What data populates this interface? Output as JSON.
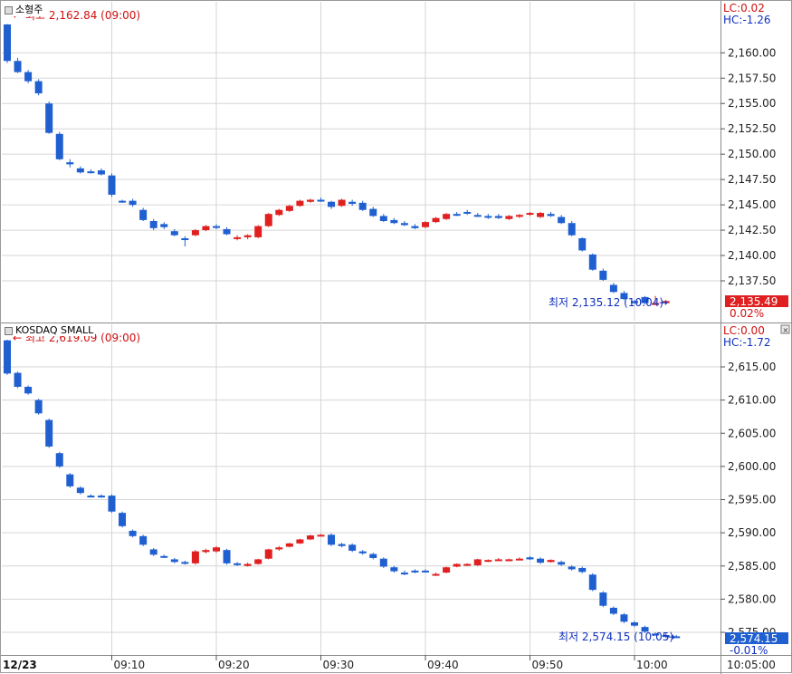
{
  "panels": [
    {
      "name": "소형주",
      "lc": "LC:0.02",
      "hc": "HC:-1.26",
      "high_note": "최고 2,162.84 (09:00)",
      "low_note": "최저 2,135.12 (10:04)",
      "last_value": "2,135.49",
      "change_pct": "0.02%",
      "y_ticks": [
        "2,160.00",
        "2,157.50",
        "2,155.00",
        "2,152.50",
        "2,150.00",
        "2,147.50",
        "2,145.00",
        "2,142.50",
        "2,140.00",
        "2,137.50"
      ],
      "colors": {
        "up": "#e02020",
        "down": "#1f5fd0",
        "badge": "#e02020"
      }
    },
    {
      "name": "KOSDAQ SMALL",
      "lc": "LC:0.00",
      "hc": "HC:-1.72",
      "high_note": "최고 2,619.09 (09:00)",
      "low_note": "최저 2,574.15 (10:05)",
      "last_value": "2,574.15",
      "change_pct": "-0.01%",
      "y_ticks": [
        "2,615.00",
        "2,610.00",
        "2,605.00",
        "2,600.00",
        "2,595.00",
        "2,590.00",
        "2,585.00",
        "2,580.00",
        "2,575.00"
      ],
      "colors": {
        "up": "#e02020",
        "down": "#1f5fd0",
        "badge": "#1f5fd0"
      }
    }
  ],
  "x_axis": {
    "date": "12/23",
    "ticks": [
      "09:10",
      "09:20",
      "09:30",
      "09:40",
      "09:50",
      "10:00"
    ],
    "right_label": "10:05:00"
  },
  "chart_data": [
    {
      "type": "candlestick",
      "title": "소형주",
      "ylim": [
        2132.5,
        2162.8
      ],
      "x_unit": "minute",
      "start_time": "09:00",
      "candles": [
        [
          2162.8,
          2162.84,
          2159.0,
          2159.2
        ],
        [
          2159.2,
          2159.5,
          2158.0,
          2158.1
        ],
        [
          2158.1,
          2158.3,
          2157.0,
          2157.2
        ],
        [
          2157.2,
          2157.4,
          2155.8,
          2156.0
        ],
        [
          2155.0,
          2155.2,
          2152.0,
          2152.1
        ],
        [
          2152.0,
          2152.2,
          2149.4,
          2149.5
        ],
        [
          2149.2,
          2149.5,
          2148.7,
          2149.0
        ],
        [
          2148.6,
          2148.8,
          2148.1,
          2148.2
        ],
        [
          2148.3,
          2148.5,
          2148.1,
          2148.2
        ],
        [
          2148.4,
          2148.6,
          2147.9,
          2148.0
        ],
        [
          2147.9,
          2148.1,
          2145.8,
          2146.0
        ],
        [
          2145.4,
          2145.5,
          2145.2,
          2145.3
        ],
        [
          2145.4,
          2145.6,
          2144.8,
          2145.0
        ],
        [
          2144.5,
          2144.7,
          2143.4,
          2143.5
        ],
        [
          2143.4,
          2143.6,
          2142.5,
          2142.7
        ],
        [
          2143.1,
          2143.3,
          2142.6,
          2142.8
        ],
        [
          2142.4,
          2142.6,
          2141.9,
          2142.0
        ],
        [
          2141.7,
          2141.9,
          2140.9,
          2141.6
        ],
        [
          2142.0,
          2142.6,
          2141.9,
          2142.5
        ],
        [
          2142.5,
          2143.0,
          2142.4,
          2142.9
        ],
        [
          2142.9,
          2143.1,
          2142.6,
          2142.8
        ],
        [
          2142.6,
          2142.8,
          2142.0,
          2142.1
        ],
        [
          2141.7,
          2142.0,
          2141.5,
          2141.8
        ],
        [
          2141.8,
          2142.1,
          2141.6,
          2142.0
        ],
        [
          2141.8,
          2143.0,
          2141.7,
          2142.9
        ],
        [
          2142.9,
          2144.2,
          2142.8,
          2144.1
        ],
        [
          2144.0,
          2144.6,
          2143.9,
          2144.5
        ],
        [
          2144.4,
          2145.0,
          2144.3,
          2144.9
        ],
        [
          2144.9,
          2145.5,
          2144.8,
          2145.4
        ],
        [
          2145.3,
          2145.6,
          2145.2,
          2145.5
        ],
        [
          2145.5,
          2145.7,
          2145.3,
          2145.4
        ],
        [
          2145.3,
          2145.4,
          2144.6,
          2144.8
        ],
        [
          2144.9,
          2145.6,
          2144.8,
          2145.5
        ],
        [
          2145.3,
          2145.5,
          2144.9,
          2145.1
        ],
        [
          2145.2,
          2145.4,
          2144.4,
          2144.5
        ],
        [
          2144.6,
          2144.8,
          2143.8,
          2143.9
        ],
        [
          2143.9,
          2144.1,
          2143.3,
          2143.4
        ],
        [
          2143.5,
          2143.7,
          2143.1,
          2143.2
        ],
        [
          2143.2,
          2143.4,
          2142.9,
          2143.0
        ],
        [
          2142.9,
          2143.1,
          2142.6,
          2142.7
        ],
        [
          2142.8,
          2143.4,
          2142.7,
          2143.3
        ],
        [
          2143.3,
          2143.8,
          2143.2,
          2143.7
        ],
        [
          2143.6,
          2144.2,
          2143.5,
          2144.1
        ],
        [
          2144.1,
          2144.3,
          2143.9,
          2144.0
        ],
        [
          2144.3,
          2144.5,
          2144.0,
          2144.2
        ],
        [
          2144.0,
          2144.2,
          2143.8,
          2143.9
        ],
        [
          2143.9,
          2144.1,
          2143.6,
          2143.8
        ],
        [
          2143.9,
          2144.1,
          2143.6,
          2143.7
        ],
        [
          2143.6,
          2144.0,
          2143.5,
          2143.9
        ],
        [
          2143.9,
          2144.1,
          2143.7,
          2144.0
        ],
        [
          2144.1,
          2144.3,
          2143.9,
          2144.2
        ],
        [
          2143.8,
          2144.3,
          2143.7,
          2144.2
        ],
        [
          2144.1,
          2144.3,
          2143.8,
          2143.9
        ],
        [
          2143.8,
          2144.0,
          2143.1,
          2143.2
        ],
        [
          2143.2,
          2143.4,
          2141.9,
          2142.0
        ],
        [
          2141.7,
          2141.8,
          2140.4,
          2140.5
        ],
        [
          2140.1,
          2140.2,
          2138.5,
          2138.6
        ],
        [
          2138.5,
          2138.7,
          2137.5,
          2137.6
        ],
        [
          2137.1,
          2137.3,
          2136.3,
          2136.4
        ],
        [
          2136.3,
          2136.5,
          2135.6,
          2135.7
        ],
        [
          2135.5,
          2135.6,
          2135.2,
          2135.3
        ],
        [
          2135.9,
          2136.0,
          2135.2,
          2135.3
        ],
        [
          2135.2,
          2136.0,
          2135.12,
          2135.3
        ],
        [
          2135.3,
          2135.6,
          2135.2,
          2135.5
        ]
      ]
    },
    {
      "type": "candlestick",
      "title": "KOSDAQ SMALL",
      "ylim": [
        2571.5,
        2619.1
      ],
      "x_unit": "minute",
      "start_time": "09:00",
      "candles": [
        [
          2619.0,
          2619.09,
          2613.8,
          2614.0
        ],
        [
          2614.1,
          2614.3,
          2611.8,
          2612.0
        ],
        [
          2612.0,
          2612.2,
          2610.8,
          2611.0
        ],
        [
          2610.0,
          2610.2,
          2607.8,
          2608.0
        ],
        [
          2607.0,
          2607.2,
          2602.8,
          2603.0
        ],
        [
          2602.0,
          2602.2,
          2599.8,
          2600.0
        ],
        [
          2598.8,
          2599.0,
          2596.8,
          2597.0
        ],
        [
          2596.8,
          2597.0,
          2595.8,
          2596.0
        ],
        [
          2595.6,
          2595.8,
          2595.4,
          2595.5
        ],
        [
          2595.6,
          2595.8,
          2595.3,
          2595.4
        ],
        [
          2595.6,
          2595.8,
          2593.0,
          2593.2
        ],
        [
          2593.0,
          2593.2,
          2590.8,
          2591.0
        ],
        [
          2590.3,
          2590.5,
          2589.3,
          2589.5
        ],
        [
          2589.5,
          2589.7,
          2588.0,
          2588.2
        ],
        [
          2587.5,
          2587.7,
          2586.5,
          2586.7
        ],
        [
          2586.5,
          2586.7,
          2586.2,
          2586.4
        ],
        [
          2586.0,
          2586.2,
          2585.4,
          2585.6
        ],
        [
          2585.6,
          2585.8,
          2585.2,
          2585.4
        ],
        [
          2585.4,
          2587.4,
          2585.2,
          2587.2
        ],
        [
          2587.1,
          2587.6,
          2586.9,
          2587.4
        ],
        [
          2587.2,
          2588.0,
          2587.0,
          2587.8
        ],
        [
          2587.4,
          2587.6,
          2585.2,
          2585.4
        ],
        [
          2585.4,
          2585.6,
          2585.0,
          2585.2
        ],
        [
          2585.0,
          2585.5,
          2584.9,
          2585.3
        ],
        [
          2585.3,
          2586.1,
          2585.2,
          2586.0
        ],
        [
          2586.1,
          2587.6,
          2586.0,
          2587.5
        ],
        [
          2587.5,
          2588.0,
          2587.3,
          2587.8
        ],
        [
          2587.9,
          2588.5,
          2587.8,
          2588.4
        ],
        [
          2588.4,
          2589.1,
          2588.3,
          2589.0
        ],
        [
          2589.0,
          2589.7,
          2588.9,
          2589.6
        ],
        [
          2589.7,
          2589.8,
          2589.5,
          2589.7
        ],
        [
          2589.7,
          2589.9,
          2588.0,
          2588.2
        ],
        [
          2588.3,
          2588.5,
          2587.8,
          2588.0
        ],
        [
          2588.2,
          2588.4,
          2587.1,
          2587.3
        ],
        [
          2587.2,
          2587.4,
          2586.7,
          2586.9
        ],
        [
          2586.8,
          2587.0,
          2586.0,
          2586.2
        ],
        [
          2586.1,
          2586.3,
          2584.7,
          2584.9
        ],
        [
          2584.8,
          2585.0,
          2584.0,
          2584.2
        ],
        [
          2584.0,
          2584.3,
          2583.6,
          2583.8
        ],
        [
          2584.3,
          2584.5,
          2583.9,
          2584.2
        ],
        [
          2584.3,
          2584.5,
          2584.0,
          2584.1
        ],
        [
          2583.7,
          2584.0,
          2583.5,
          2583.8
        ],
        [
          2584.0,
          2584.9,
          2583.9,
          2584.8
        ],
        [
          2584.9,
          2585.4,
          2584.8,
          2585.3
        ],
        [
          2585.1,
          2585.4,
          2585.0,
          2585.3
        ],
        [
          2585.1,
          2586.1,
          2585.0,
          2586.0
        ],
        [
          2585.8,
          2586.0,
          2585.6,
          2585.9
        ],
        [
          2586.0,
          2586.2,
          2585.8,
          2586.0
        ],
        [
          2585.9,
          2586.1,
          2585.7,
          2586.0
        ],
        [
          2586.1,
          2586.3,
          2585.9,
          2586.1
        ],
        [
          2586.3,
          2586.5,
          2585.9,
          2586.0
        ],
        [
          2586.1,
          2586.3,
          2585.3,
          2585.5
        ],
        [
          2585.6,
          2586.0,
          2585.5,
          2585.9
        ],
        [
          2585.6,
          2585.8,
          2585.0,
          2585.2
        ],
        [
          2584.9,
          2585.1,
          2584.3,
          2584.5
        ],
        [
          2584.7,
          2584.9,
          2583.9,
          2584.1
        ],
        [
          2583.7,
          2583.9,
          2581.2,
          2581.4
        ],
        [
          2581.0,
          2581.2,
          2578.8,
          2579.0
        ],
        [
          2578.7,
          2578.9,
          2577.6,
          2577.8
        ],
        [
          2577.7,
          2577.9,
          2576.4,
          2576.6
        ],
        [
          2576.5,
          2576.7,
          2575.8,
          2576.0
        ],
        [
          2575.8,
          2576.0,
          2574.9,
          2575.1
        ],
        [
          2574.8,
          2575.0,
          2574.5,
          2574.7
        ],
        [
          2574.6,
          2574.9,
          2574.15,
          2574.3
        ],
        [
          2574.4,
          2574.6,
          2574.15,
          2574.2
        ]
      ]
    }
  ]
}
